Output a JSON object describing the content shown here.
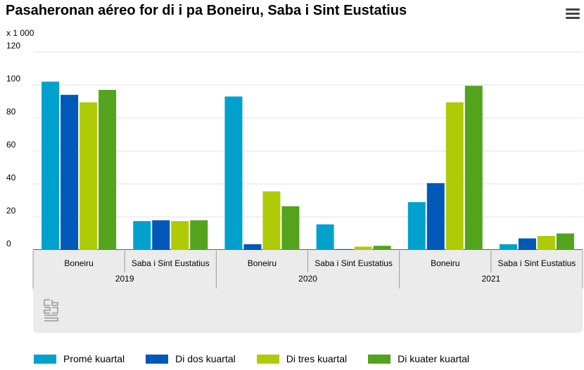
{
  "title": "Pasaheronan aéreo for di i pa Boneiru, Saba i Sint Eustatius",
  "menu_icon": "hamburger-menu-icon",
  "logo_icon": "cbs-logo-icon",
  "chart_data": {
    "type": "bar",
    "unit_label": "x 1 000",
    "ylim": [
      0,
      120
    ],
    "yticks": [
      0,
      20,
      40,
      60,
      80,
      100,
      120
    ],
    "grid": true,
    "legend_position": "bottom",
    "groups": [
      {
        "year": "2019",
        "categories": [
          "Boneiru",
          "Saba i Sint Eustatius"
        ]
      },
      {
        "year": "2020",
        "categories": [
          "Boneiru",
          "Saba i Sint Eustatius"
        ]
      },
      {
        "year": "2021",
        "categories": [
          "Boneiru",
          "Saba i Sint Eustatius"
        ]
      }
    ],
    "series": [
      {
        "name": "Promé kuartal",
        "color": "#00a1cd",
        "values": [
          102,
          17.5,
          93,
          15.5,
          29,
          3.5
        ]
      },
      {
        "name": "Di dos kuartal",
        "color": "#0058b8",
        "values": [
          94,
          18,
          3.5,
          0.5,
          40.5,
          7
        ]
      },
      {
        "name": "Di tres kuartal",
        "color": "#afcb05",
        "values": [
          89.5,
          17.5,
          35.5,
          2,
          89.5,
          8.5
        ]
      },
      {
        "name": "Di kuater kuartal",
        "color": "#53a31d",
        "values": [
          97,
          18,
          26.5,
          2.5,
          99.5,
          10
        ]
      }
    ]
  }
}
